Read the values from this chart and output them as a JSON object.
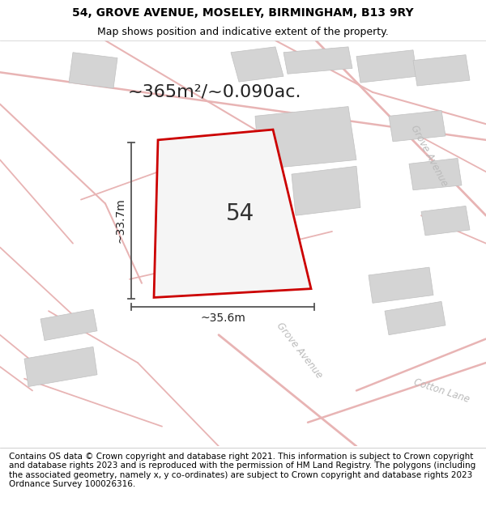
{
  "title_line1": "54, GROVE AVENUE, MOSELEY, BIRMINGHAM, B13 9RY",
  "title_line2": "Map shows position and indicative extent of the property.",
  "area_label": "~365m²/~0.090ac.",
  "property_number": "54",
  "dim_height": "~33.7m",
  "dim_width": "~35.6m",
  "footer_text": "Contains OS data © Crown copyright and database right 2021. This information is subject to Crown copyright and database rights 2023 and is reproduced with the permission of HM Land Registry. The polygons (including the associated geometry, namely x, y co-ordinates) are subject to Crown copyright and database rights 2023 Ordnance Survey 100026316.",
  "bg_color": "#ffffff",
  "map_bg": "#f8f8f8",
  "road_color": "#e8b4b4",
  "building_color": "#d4d4d4",
  "building_edge": "#c0c0c0",
  "property_fill": "#f0f0f0",
  "property_outline_color": "#cc0000",
  "dim_line_color": "#555555",
  "street_label_color": "#bbbbbb",
  "title_fontsize": 10,
  "subtitle_fontsize": 9,
  "area_fontsize": 16,
  "number_fontsize": 20,
  "dim_fontsize": 10,
  "footer_fontsize": 7.5
}
